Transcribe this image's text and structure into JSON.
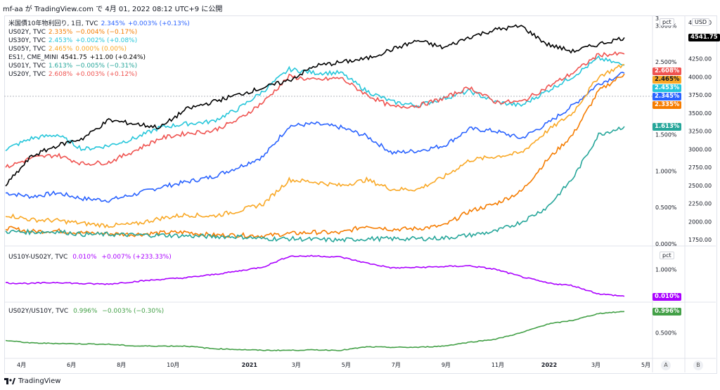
{
  "header": {
    "text": "mf-aa が TradingView.com で 4月 01, 2022 08:12 UTC+9 に公開"
  },
  "footer": {
    "brand": "TradingView"
  },
  "legend": [
    {
      "label": "米国債10年物利回り, 1日, TVC",
      "value": "2.345%",
      "change": "+0.003% (+0.13%)",
      "color": "#2962ff"
    },
    {
      "label": "US02Y, TVC",
      "value": "2.335%",
      "change": "−0.004% (−0.17%)",
      "color": "#f57c00"
    },
    {
      "label": "US30Y, TVC",
      "value": "2.453%",
      "change": "+0.002% (+0.08%)",
      "color": "#26c6da"
    },
    {
      "label": "US05Y, TVC",
      "value": "2.465%",
      "change": "0.000% (0.00%)",
      "color": "#f9a825"
    },
    {
      "label": "ES1!, CME_MINI",
      "value": "4541.75",
      "change": "+11.00 (+0.24%)",
      "color": "#000000"
    },
    {
      "label": "US01Y, TVC",
      "value": "1.613%",
      "change": "−0.005% (−0.31%)",
      "color": "#26a69a"
    },
    {
      "label": "US20Y, TVC",
      "value": "2.608%",
      "change": "+0.003% (+0.12%)",
      "color": "#ef5350"
    }
  ],
  "pane2_legend": {
    "label": "US10Y-US02Y, TVC",
    "value": "0.010%",
    "change": "+0.007% (+233.33%)",
    "color": "#aa00ff"
  },
  "pane3_legend": {
    "label": "US02Y/US10Y, TVC",
    "value": "0.996%",
    "change": "−0.003% (−0.30%)",
    "color": "#43a047"
  },
  "axis_units": {
    "pct": "pct",
    "usd": "USD"
  },
  "buttons": {
    "a": "A",
    "b": "B"
  },
  "colors": {
    "grid": "#f0f3fa",
    "border": "#e0e3eb"
  },
  "chart_data": [
    {
      "type": "line",
      "pane": "main",
      "x_ticks": [
        "4月",
        "6月",
        "8月",
        "10月",
        "2021",
        "3月",
        "5月",
        "7月",
        "9月",
        "11月",
        "2022",
        "3月",
        "5月"
      ],
      "y_left_ticks": [
        "3.",
        "3.000%",
        "2.500%",
        "2.000%",
        "1.500%",
        "1.000%",
        "0.500%",
        "0.000%"
      ],
      "y_right_ticks": [
        "4750.00",
        "4250.00",
        "4000.00",
        "3750.00",
        "3500.00",
        "3250.00",
        "3000.00",
        "2750.00",
        "2500.00",
        "2250.00",
        "2000.00",
        "1750.00"
      ],
      "ylim_pct": [
        0,
        3.1
      ],
      "ylim_usd": [
        1750,
        4750
      ],
      "series": [
        {
          "name": "US10Y",
          "color": "#2962ff",
          "axis": "pct",
          "x": [
            "2020-04",
            "2020-05",
            "2020-06",
            "2020-07",
            "2020-08",
            "2020-09",
            "2020-10",
            "2020-11",
            "2020-12",
            "2021-01",
            "2021-02",
            "2021-03",
            "2021-04",
            "2021-05",
            "2021-06",
            "2021-07",
            "2021-08",
            "2021-09",
            "2021-10",
            "2021-11",
            "2021-12",
            "2022-01",
            "2022-02",
            "2022-03",
            "2022-04"
          ],
          "values": [
            0.7,
            0.65,
            0.7,
            0.62,
            0.6,
            0.68,
            0.78,
            0.85,
            0.92,
            1.05,
            1.2,
            1.62,
            1.65,
            1.6,
            1.48,
            1.25,
            1.28,
            1.35,
            1.58,
            1.55,
            1.45,
            1.65,
            1.9,
            2.2,
            2.345
          ]
        },
        {
          "name": "US02Y",
          "color": "#f57c00",
          "axis": "pct",
          "x": [
            "2020-04",
            "2020-05",
            "2020-06",
            "2020-07",
            "2020-08",
            "2020-09",
            "2020-10",
            "2020-11",
            "2020-12",
            "2021-01",
            "2021-02",
            "2021-03",
            "2021-04",
            "2021-05",
            "2021-06",
            "2021-07",
            "2021-08",
            "2021-09",
            "2021-10",
            "2021-11",
            "2021-12",
            "2022-01",
            "2022-02",
            "2022-03",
            "2022-04"
          ],
          "values": [
            0.22,
            0.17,
            0.18,
            0.15,
            0.14,
            0.13,
            0.15,
            0.16,
            0.12,
            0.12,
            0.11,
            0.14,
            0.16,
            0.15,
            0.25,
            0.2,
            0.21,
            0.25,
            0.45,
            0.55,
            0.72,
            1.15,
            1.5,
            2.1,
            2.335
          ]
        },
        {
          "name": "US30Y",
          "color": "#26c6da",
          "axis": "pct",
          "x": [
            "2020-04",
            "2020-05",
            "2020-06",
            "2020-07",
            "2020-08",
            "2020-09",
            "2020-10",
            "2020-11",
            "2020-12",
            "2021-01",
            "2021-02",
            "2021-03",
            "2021-04",
            "2021-05",
            "2021-06",
            "2021-07",
            "2021-08",
            "2021-09",
            "2021-10",
            "2021-11",
            "2021-12",
            "2022-01",
            "2022-02",
            "2022-03",
            "2022-04"
          ],
          "values": [
            1.3,
            1.45,
            1.5,
            1.3,
            1.35,
            1.45,
            1.6,
            1.65,
            1.68,
            1.85,
            2.1,
            2.4,
            2.35,
            2.35,
            2.1,
            1.95,
            1.9,
            2.0,
            2.1,
            1.95,
            1.9,
            2.1,
            2.3,
            2.55,
            2.453
          ]
        },
        {
          "name": "US05Y",
          "color": "#f9a825",
          "axis": "pct",
          "x": [
            "2020-04",
            "2020-05",
            "2020-06",
            "2020-07",
            "2020-08",
            "2020-09",
            "2020-10",
            "2020-11",
            "2020-12",
            "2021-01",
            "2021-02",
            "2021-03",
            "2021-04",
            "2021-05",
            "2021-06",
            "2021-07",
            "2021-08",
            "2021-09",
            "2021-10",
            "2021-11",
            "2021-12",
            "2022-01",
            "2022-02",
            "2022-03",
            "2022-04"
          ],
          "values": [
            0.4,
            0.33,
            0.32,
            0.28,
            0.25,
            0.27,
            0.35,
            0.4,
            0.38,
            0.45,
            0.55,
            0.88,
            0.85,
            0.8,
            0.88,
            0.75,
            0.75,
            0.92,
            1.15,
            1.2,
            1.25,
            1.55,
            1.8,
            2.3,
            2.465
          ]
        },
        {
          "name": "US01Y",
          "color": "#26a69a",
          "axis": "pct",
          "x": [
            "2020-04",
            "2020-05",
            "2020-06",
            "2020-07",
            "2020-08",
            "2020-09",
            "2020-10",
            "2020-11",
            "2020-12",
            "2021-01",
            "2021-02",
            "2021-03",
            "2021-04",
            "2021-05",
            "2021-06",
            "2021-07",
            "2021-08",
            "2021-09",
            "2021-10",
            "2021-11",
            "2021-12",
            "2022-01",
            "2022-02",
            "2022-03",
            "2022-04"
          ],
          "values": [
            0.17,
            0.16,
            0.17,
            0.13,
            0.13,
            0.12,
            0.12,
            0.11,
            0.1,
            0.1,
            0.07,
            0.07,
            0.06,
            0.05,
            0.07,
            0.07,
            0.07,
            0.08,
            0.12,
            0.17,
            0.3,
            0.5,
            0.9,
            1.5,
            1.613
          ]
        },
        {
          "name": "US20Y",
          "color": "#ef5350",
          "axis": "pct",
          "x": [
            "2020-04",
            "2020-05",
            "2020-06",
            "2020-07",
            "2020-08",
            "2020-09",
            "2020-10",
            "2020-11",
            "2020-12",
            "2021-01",
            "2021-02",
            "2021-03",
            "2021-04",
            "2021-05",
            "2021-06",
            "2021-07",
            "2021-08",
            "2021-09",
            "2021-10",
            "2021-11",
            "2021-12",
            "2022-01",
            "2022-02",
            "2022-03",
            "2022-04"
          ],
          "values": [
            1.05,
            1.18,
            1.22,
            1.1,
            1.12,
            1.28,
            1.45,
            1.52,
            1.55,
            1.7,
            1.95,
            2.3,
            2.25,
            2.28,
            2.05,
            1.88,
            1.9,
            2.0,
            2.15,
            1.95,
            1.95,
            2.15,
            2.35,
            2.6,
            2.608
          ]
        },
        {
          "name": "ES1!",
          "color": "#000000",
          "axis": "usd",
          "x": [
            "2020-04",
            "2020-05",
            "2020-06",
            "2020-07",
            "2020-08",
            "2020-09",
            "2020-10",
            "2020-11",
            "2020-12",
            "2021-01",
            "2021-02",
            "2021-03",
            "2021-04",
            "2021-05",
            "2021-06",
            "2021-07",
            "2021-08",
            "2021-09",
            "2021-10",
            "2021-11",
            "2021-12",
            "2022-01",
            "2022-02",
            "2022-03",
            "2022-04"
          ],
          "values": [
            2500,
            2900,
            3050,
            3150,
            3400,
            3350,
            3300,
            3550,
            3650,
            3750,
            3850,
            3950,
            4150,
            4200,
            4250,
            4380,
            4500,
            4400,
            4550,
            4650,
            4700,
            4450,
            4350,
            4450,
            4541.75
          ]
        }
      ]
    },
    {
      "type": "line",
      "pane": "spread",
      "y_ticks": [
        "1.000%"
      ],
      "series": [
        {
          "name": "US10Y-US02Y",
          "color": "#aa00ff",
          "x": [
            "2020-04",
            "2020-05",
            "2020-06",
            "2020-07",
            "2020-08",
            "2020-09",
            "2020-10",
            "2020-11",
            "2020-12",
            "2021-01",
            "2021-02",
            "2021-03",
            "2021-04",
            "2021-05",
            "2021-06",
            "2021-07",
            "2021-08",
            "2021-09",
            "2021-10",
            "2021-11",
            "2021-12",
            "2022-01",
            "2022-02",
            "2022-03",
            "2022-04"
          ],
          "values": [
            0.5,
            0.48,
            0.52,
            0.47,
            0.46,
            0.55,
            0.63,
            0.69,
            0.8,
            0.93,
            1.09,
            1.48,
            1.49,
            1.45,
            1.23,
            1.05,
            1.07,
            1.1,
            1.13,
            1.0,
            0.73,
            0.5,
            0.4,
            0.1,
            0.01
          ]
        }
      ]
    },
    {
      "type": "line",
      "pane": "ratio",
      "y_ticks": [
        "0.500%"
      ],
      "series": [
        {
          "name": "US02Y/US10Y",
          "color": "#43a047",
          "x": [
            "2020-04",
            "2020-05",
            "2020-06",
            "2020-07",
            "2020-08",
            "2020-09",
            "2020-10",
            "2020-11",
            "2020-12",
            "2021-01",
            "2021-02",
            "2021-03",
            "2021-04",
            "2021-05",
            "2021-06",
            "2021-07",
            "2021-08",
            "2021-09",
            "2021-10",
            "2021-11",
            "2021-12",
            "2022-01",
            "2022-02",
            "2022-03",
            "2022-04"
          ],
          "values": [
            0.32,
            0.26,
            0.25,
            0.24,
            0.23,
            0.19,
            0.19,
            0.19,
            0.13,
            0.11,
            0.09,
            0.09,
            0.1,
            0.09,
            0.17,
            0.16,
            0.16,
            0.19,
            0.28,
            0.35,
            0.5,
            0.7,
            0.79,
            0.95,
            0.996
          ]
        }
      ]
    }
  ]
}
